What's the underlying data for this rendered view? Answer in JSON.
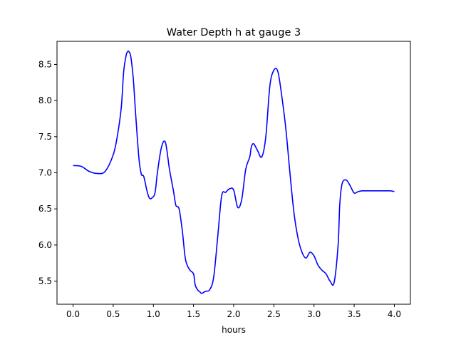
{
  "chart_data": {
    "type": "line",
    "title": "Water Depth h at gauge 3",
    "xlabel": "hours",
    "ylabel": "",
    "xlim": [
      -0.2,
      4.2
    ],
    "ylim": [
      5.18,
      8.82
    ],
    "xticks": [
      0.0,
      0.5,
      1.0,
      1.5,
      2.0,
      2.5,
      3.0,
      3.5,
      4.0
    ],
    "xtick_labels": [
      "0.0",
      "0.5",
      "1.0",
      "1.5",
      "2.0",
      "2.5",
      "3.0",
      "3.5",
      "4.0"
    ],
    "yticks": [
      5.5,
      6.0,
      6.5,
      7.0,
      7.5,
      8.0,
      8.5
    ],
    "ytick_labels": [
      "5.5",
      "6.0",
      "6.5",
      "7.0",
      "7.5",
      "8.0",
      "8.5"
    ],
    "grid": false,
    "series": [
      {
        "color": "#0000ff",
        "x": [
          0.0,
          0.1,
          0.2,
          0.3,
          0.4,
          0.5,
          0.55,
          0.6,
          0.63,
          0.66,
          0.68,
          0.7,
          0.72,
          0.75,
          0.78,
          0.82,
          0.85,
          0.88,
          0.92,
          0.95,
          0.98,
          1.02,
          1.05,
          1.1,
          1.15,
          1.2,
          1.25,
          1.28,
          1.32,
          1.36,
          1.4,
          1.45,
          1.5,
          1.52,
          1.55,
          1.58,
          1.6,
          1.65,
          1.7,
          1.75,
          1.8,
          1.85,
          1.9,
          1.95,
          2.0,
          2.05,
          2.1,
          2.15,
          2.2,
          2.22,
          2.25,
          2.3,
          2.35,
          2.4,
          2.45,
          2.5,
          2.55,
          2.6,
          2.65,
          2.7,
          2.75,
          2.8,
          2.85,
          2.9,
          2.95,
          3.0,
          3.05,
          3.1,
          3.15,
          3.2,
          3.25,
          3.3,
          3.32,
          3.35,
          3.4,
          3.45,
          3.5,
          3.55,
          3.6,
          3.65,
          3.7,
          3.75,
          3.8,
          3.85,
          3.9,
          3.95,
          4.0
        ],
        "y": [
          7.1,
          7.09,
          7.02,
          6.99,
          7.02,
          7.25,
          7.5,
          7.9,
          8.4,
          8.62,
          8.68,
          8.67,
          8.6,
          8.3,
          7.8,
          7.2,
          6.98,
          6.95,
          6.75,
          6.65,
          6.65,
          6.72,
          7.0,
          7.35,
          7.42,
          7.05,
          6.75,
          6.55,
          6.5,
          6.2,
          5.8,
          5.66,
          5.6,
          5.45,
          5.38,
          5.35,
          5.33,
          5.36,
          5.38,
          5.55,
          6.1,
          6.68,
          6.73,
          6.78,
          6.76,
          6.52,
          6.63,
          7.05,
          7.22,
          7.36,
          7.4,
          7.3,
          7.22,
          7.5,
          8.2,
          8.42,
          8.4,
          8.05,
          7.6,
          7.0,
          6.45,
          6.1,
          5.9,
          5.82,
          5.9,
          5.85,
          5.72,
          5.65,
          5.6,
          5.5,
          5.48,
          6.0,
          6.55,
          6.85,
          6.9,
          6.82,
          6.72,
          6.74,
          6.75,
          6.75,
          6.75,
          6.75,
          6.75,
          6.75,
          6.75,
          6.75,
          6.74
        ]
      }
    ]
  }
}
